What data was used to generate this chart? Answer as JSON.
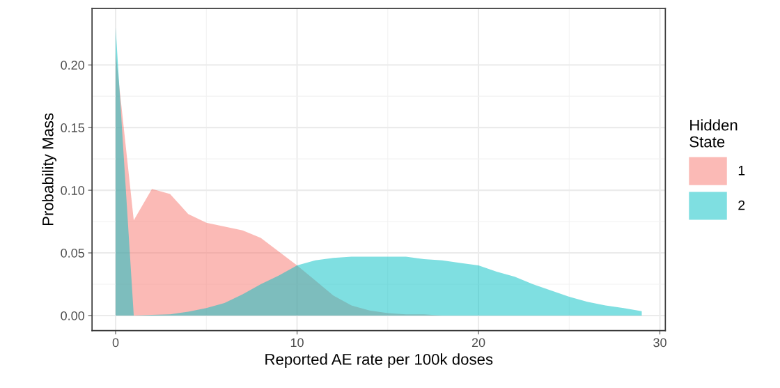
{
  "chart_data": {
    "type": "area",
    "xlabel": "Reported AE rate per 100k doses",
    "ylabel": "Probability Mass",
    "legend_title": "Hidden\nState",
    "x": [
      0,
      1,
      2,
      3,
      4,
      5,
      6,
      7,
      8,
      9,
      10,
      11,
      12,
      13,
      14,
      15,
      16,
      17,
      18,
      19,
      20,
      21,
      22,
      23,
      24,
      25,
      26,
      27,
      28,
      29
    ],
    "series": [
      {
        "name": "1",
        "color": "#f8766d",
        "values": [
          0.21,
          0.076,
          0.101,
          0.097,
          0.081,
          0.074,
          0.071,
          0.068,
          0.062,
          0.051,
          0.04,
          0.028,
          0.016,
          0.008,
          0.004,
          0.002,
          0.001,
          0.001,
          0,
          0,
          0,
          0,
          0,
          0,
          0,
          0,
          0,
          0,
          0,
          0
        ]
      },
      {
        "name": "2",
        "color": "#00bfc4",
        "values": [
          0.23,
          0,
          0.0005,
          0.001,
          0.003,
          0.006,
          0.01,
          0.017,
          0.025,
          0.032,
          0.04,
          0.044,
          0.046,
          0.047,
          0.047,
          0.047,
          0.047,
          0.045,
          0.044,
          0.042,
          0.04,
          0.035,
          0.031,
          0.025,
          0.02,
          0.015,
          0.011,
          0.008,
          0.006,
          0.0035
        ]
      }
    ],
    "xlim": [
      -1.3,
      30.3
    ],
    "ylim": [
      -0.012,
      0.245
    ],
    "xticks": [
      0,
      10,
      20,
      30
    ],
    "yticks": [
      {
        "value": 0,
        "label": "0.00"
      },
      {
        "value": 0.05,
        "label": "0.05"
      },
      {
        "value": 0.1,
        "label": "0.10"
      },
      {
        "value": 0.15,
        "label": "0.15"
      },
      {
        "value": 0.2,
        "label": "0.20"
      }
    ],
    "grid": true,
    "legend": "right"
  }
}
